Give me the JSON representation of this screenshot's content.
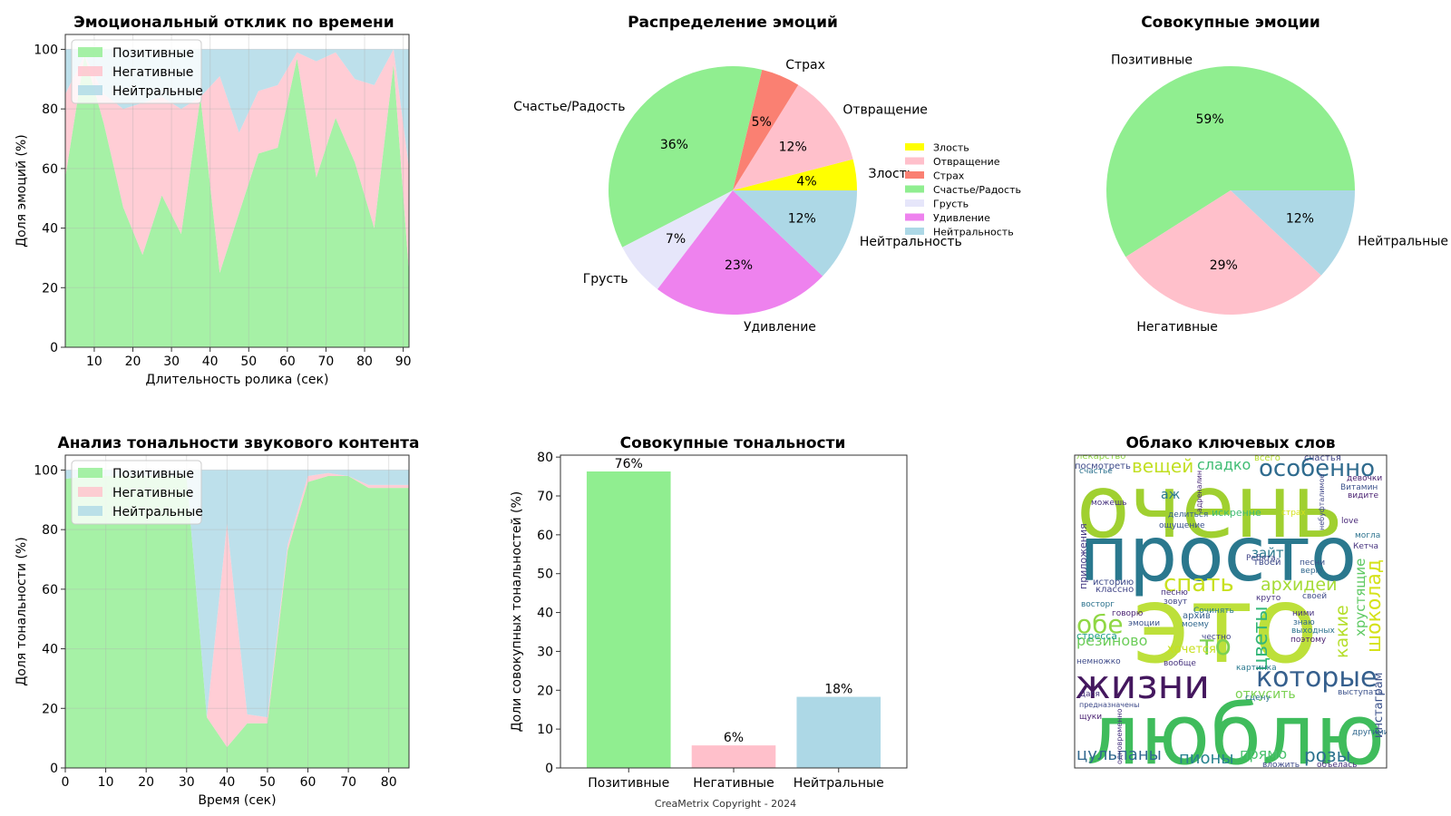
{
  "colors": {
    "positive": "#90ee90",
    "negative": "#ffc0cb",
    "neutral": "#add8e6",
    "anger": "#ffff00",
    "disgust": "#ffc0cb",
    "fear": "#fa8072",
    "happiness": "#90ee90",
    "sadness": "#e6e6fa",
    "surprise": "#ee82ee",
    "neutrality": "#add8e6"
  },
  "copyright": "CreaMetrix Copyright - 2024",
  "chart_data": [
    {
      "id": "emotion-time",
      "type": "area",
      "stacked": true,
      "title": "Эмоциональный отклик по времени",
      "xlabel": "Длительность ролика (сек)",
      "ylabel": "Доля эмоций (%)",
      "xlim": [
        2.5,
        91.5
      ],
      "ylim": [
        0,
        105
      ],
      "xticks": [
        10,
        20,
        30,
        40,
        50,
        60,
        70,
        80,
        90
      ],
      "yticks": [
        0,
        20,
        40,
        60,
        80,
        100
      ],
      "grid": true,
      "legend": "top-left",
      "x": [
        2.5,
        7.5,
        12.5,
        17.5,
        22.5,
        27.5,
        32.5,
        37.5,
        42.5,
        47.5,
        52.5,
        57.5,
        62.5,
        67.5,
        72.5,
        77.5,
        82.5,
        87.5,
        91.5
      ],
      "series": [
        {
          "name": "Позитивные",
          "color": "positive",
          "values": [
            57,
            98,
            75,
            47,
            31,
            51,
            38,
            84,
            25,
            45,
            65,
            67,
            97,
            57,
            77,
            62,
            40,
            95,
            25
          ]
        },
        {
          "name": "Негативные",
          "color": "negative",
          "values": [
            28,
            0,
            10,
            33,
            51,
            33,
            42,
            0,
            66,
            27,
            21,
            21,
            2,
            39,
            22,
            28,
            48,
            5,
            35
          ]
        },
        {
          "name": "Нейтральные",
          "color": "neutral",
          "values": [
            15,
            2,
            15,
            20,
            18,
            16,
            20,
            16,
            9,
            28,
            14,
            12,
            1,
            4,
            1,
            10,
            12,
            0,
            40
          ]
        }
      ]
    },
    {
      "id": "emotion-distribution",
      "type": "pie",
      "title": "Распределение эмоций",
      "legend": "right",
      "slices": [
        {
          "label": "Злость",
          "value": 4,
          "pct": "4%",
          "color": "anger"
        },
        {
          "label": "Отвращение",
          "value": 12,
          "pct": "12%",
          "color": "disgust"
        },
        {
          "label": "Страх",
          "value": 5,
          "pct": "5%",
          "color": "fear"
        },
        {
          "label": "Счастье/Радость",
          "value": 36,
          "pct": "36%",
          "color": "happiness"
        },
        {
          "label": "Грусть",
          "value": 7,
          "pct": "7%",
          "color": "sadness"
        },
        {
          "label": "Удивление",
          "value": 23,
          "pct": "23%",
          "color": "surprise"
        },
        {
          "label": "Нейтральность",
          "value": 12,
          "pct": "12%",
          "color": "neutrality"
        }
      ]
    },
    {
      "id": "aggregate-emotions",
      "type": "pie",
      "title": "Совокупные эмоции",
      "slices": [
        {
          "label": "Позитивные",
          "value": 59,
          "pct": "59%",
          "color": "positive"
        },
        {
          "label": "Негативные",
          "value": 29,
          "pct": "29%",
          "color": "negative"
        },
        {
          "label": "Нейтральные",
          "value": 12,
          "pct": "12%",
          "color": "neutral"
        }
      ]
    },
    {
      "id": "audio-sentiment",
      "type": "area",
      "stacked": true,
      "title": "Анализ тональности звукового контента",
      "xlabel": "Время (сек)",
      "ylabel": "Доля тональности (%)",
      "xlim": [
        0,
        85
      ],
      "ylim": [
        0,
        105
      ],
      "xticks": [
        0,
        10,
        20,
        30,
        40,
        50,
        60,
        70,
        80
      ],
      "yticks": [
        0,
        20,
        40,
        60,
        80,
        100
      ],
      "grid": true,
      "legend": "top-left",
      "x": [
        0,
        5,
        10,
        15,
        20,
        25,
        30,
        35,
        40,
        45,
        50,
        55,
        60,
        65,
        70,
        75,
        80,
        85
      ],
      "series": [
        {
          "name": "Позитивные",
          "color": "positive",
          "values": [
            97,
            98,
            98,
            98,
            98,
            98,
            98,
            17,
            7,
            15,
            15,
            73,
            96,
            98,
            98,
            94,
            94,
            94
          ]
        },
        {
          "name": "Негативные",
          "color": "negative",
          "values": [
            0,
            0,
            0,
            0,
            0,
            0,
            0,
            0,
            75,
            3,
            2,
            2,
            2,
            1,
            0,
            1,
            1,
            1
          ]
        },
        {
          "name": "Нейтральные",
          "color": "neutral",
          "values": [
            3,
            2,
            2,
            2,
            2,
            2,
            2,
            83,
            18,
            82,
            83,
            25,
            2,
            1,
            2,
            5,
            5,
            5
          ]
        }
      ]
    },
    {
      "id": "aggregate-sentiment",
      "type": "bar",
      "title": "Совокупные тональности",
      "ylabel": "Доли совокупных тональностей (%)",
      "xlabel": "",
      "ylim": [
        0,
        80.5
      ],
      "yticks": [
        0,
        10,
        20,
        30,
        40,
        50,
        60,
        70,
        80
      ],
      "categories": [
        "Позитивные",
        "Негативные",
        "Нейтральные"
      ],
      "values": [
        76.3,
        5.8,
        18.3
      ],
      "data_labels": [
        "76%",
        "6%",
        "18%"
      ],
      "colors": [
        "positive",
        "negative",
        "neutral"
      ]
    }
  ],
  "wordcloud": {
    "title": "Облако ключевых слов",
    "words": [
      {
        "text": "очень",
        "size": 96,
        "color": "#a0d030",
        "rot": 0
      },
      {
        "text": "просто",
        "size": 84,
        "color": "#2a788e",
        "rot": 0
      },
      {
        "text": "это",
        "size": 118,
        "color": "#bde03a",
        "rot": 0
      },
      {
        "text": "люблю",
        "size": 92,
        "color": "#3fbc5c",
        "rot": 0
      },
      {
        "text": "жизни",
        "size": 44,
        "color": "#44175e",
        "rot": 0
      },
      {
        "text": "которые",
        "size": 30,
        "color": "#355f8d",
        "rot": 0
      },
      {
        "text": "особенно",
        "size": 26,
        "color": "#2f6b8e",
        "rot": 0
      },
      {
        "text": "вещей",
        "size": 20,
        "color": "#c2df23",
        "rot": 0
      },
      {
        "text": "сладко",
        "size": 16,
        "color": "#3fbc73",
        "rot": 0
      },
      {
        "text": "спать",
        "size": 26,
        "color": "#c8e020",
        "rot": 0
      },
      {
        "text": "архидеи",
        "size": 19,
        "color": "#a5db36",
        "rot": 0
      },
      {
        "text": "зайти",
        "size": 15,
        "color": "#29788e",
        "rot": 0
      },
      {
        "text": "обе",
        "size": 28,
        "color": "#8fd744",
        "rot": 0
      },
      {
        "text": "резиново",
        "size": 16,
        "color": "#6ccd5a",
        "rot": 0
      },
      {
        "text": "то",
        "size": 30,
        "color": "#7ad151",
        "rot": 0
      },
      {
        "text": "цветы",
        "size": 22,
        "color": "#35b779",
        "rot": -90
      },
      {
        "text": "какие",
        "size": 19,
        "color": "#b5de2b",
        "rot": -90
      },
      {
        "text": "хрустящие",
        "size": 15,
        "color": "#5ec962",
        "rot": -90
      },
      {
        "text": "шоколад",
        "size": 22,
        "color": "#d5e21a",
        "rot": -90
      },
      {
        "text": "откусить",
        "size": 14,
        "color": "#7ad151",
        "rot": 0
      },
      {
        "text": "цульпаны",
        "size": 18,
        "color": "#31688e",
        "rot": 0
      },
      {
        "text": "пионы",
        "size": 18,
        "color": "#26828e",
        "rot": 0
      },
      {
        "text": "прямо",
        "size": 16,
        "color": "#4ac16d",
        "rot": 0
      },
      {
        "text": "розы",
        "size": 20,
        "color": "#2c728e",
        "rot": 0
      },
      {
        "text": "инстаграм",
        "size": 13,
        "color": "#3b528b",
        "rot": -90
      },
      {
        "text": "приложения",
        "size": 11,
        "color": "#443983",
        "rot": -90
      },
      {
        "text": "хочется",
        "size": 13,
        "color": "#c8e020",
        "rot": 0
      },
      {
        "text": "искренне",
        "size": 11,
        "color": "#3fbc73",
        "rot": 0
      },
      {
        "text": "лекарство",
        "size": 10,
        "color": "#90d743",
        "rot": 0
      },
      {
        "text": "посмотреть",
        "size": 10,
        "color": "#3e4a89",
        "rot": 0
      },
      {
        "text": "всего",
        "size": 10,
        "color": "#b5de2b",
        "rot": 0
      },
      {
        "text": "счастья",
        "size": 10,
        "color": "#414487",
        "rot": 0
      },
      {
        "text": "аж",
        "size": 14,
        "color": "#2a788e",
        "rot": 0
      },
      {
        "text": "можешь",
        "size": 9,
        "color": "#46327e",
        "rot": 0
      },
      {
        "text": "делиться",
        "size": 9,
        "color": "#355f8d",
        "rot": 0
      },
      {
        "text": "ощущение",
        "size": 9,
        "color": "#3b528b",
        "rot": 0
      },
      {
        "text": "адреналин",
        "size": 8,
        "color": "#482677",
        "rot": -90
      },
      {
        "text": "страх",
        "size": 9,
        "color": "#d5e21a",
        "rot": 0
      },
      {
        "text": "небуфталимое",
        "size": 8,
        "color": "#404688",
        "rot": -90
      },
      {
        "text": "девочки",
        "size": 9,
        "color": "#481f70",
        "rot": 0
      },
      {
        "text": "Витамин",
        "size": 9,
        "color": "#3b528b",
        "rot": 0
      },
      {
        "text": "видите",
        "size": 9,
        "color": "#481f70",
        "rot": 0
      },
      {
        "text": "love",
        "size": 9,
        "color": "#482878",
        "rot": 0
      },
      {
        "text": "могла",
        "size": 9,
        "color": "#2c728e",
        "rot": 0
      },
      {
        "text": "Кетча",
        "size": 9,
        "color": "#46327e",
        "rot": 0
      },
      {
        "text": "Ребята",
        "size": 9,
        "color": "#414487",
        "rot": 0
      },
      {
        "text": "твоей",
        "size": 10,
        "color": "#3e4a89",
        "rot": 0
      },
      {
        "text": "песни",
        "size": 9,
        "color": "#3b528b",
        "rot": 0
      },
      {
        "text": "верю",
        "size": 9,
        "color": "#31688e",
        "rot": 0
      },
      {
        "text": "историю",
        "size": 10,
        "color": "#3e4a89",
        "rot": 0
      },
      {
        "text": "классно",
        "size": 10,
        "color": "#414487",
        "rot": 0
      },
      {
        "text": "песню",
        "size": 9,
        "color": "#46327e",
        "rot": 0
      },
      {
        "text": "восторг",
        "size": 9,
        "color": "#2c728e",
        "rot": 0
      },
      {
        "text": "зовут",
        "size": 9,
        "color": "#404688",
        "rot": 0
      },
      {
        "text": "Сочинять",
        "size": 9,
        "color": "#2a788e",
        "rot": 0
      },
      {
        "text": "круто",
        "size": 9,
        "color": "#46327e",
        "rot": 0
      },
      {
        "text": "своей",
        "size": 9,
        "color": "#3e4a89",
        "rot": 0
      },
      {
        "text": "говорю",
        "size": 9,
        "color": "#481f70",
        "rot": 0
      },
      {
        "text": "эмоции",
        "size": 9,
        "color": "#3b528b",
        "rot": 0
      },
      {
        "text": "архив",
        "size": 10,
        "color": "#355f8d",
        "rot": 0
      },
      {
        "text": "моему",
        "size": 9,
        "color": "#31688e",
        "rot": 0
      },
      {
        "text": "ними",
        "size": 9,
        "color": "#46327e",
        "rot": 0
      },
      {
        "text": "знаю",
        "size": 9,
        "color": "#31688e",
        "rot": 0
      },
      {
        "text": "выходных",
        "size": 9,
        "color": "#2c728e",
        "rot": 0
      },
      {
        "text": "поэтому",
        "size": 9,
        "color": "#481f70",
        "rot": 0
      },
      {
        "text": "честно",
        "size": 9,
        "color": "#404688",
        "rot": 0
      },
      {
        "text": "стресса",
        "size": 11,
        "color": "#1f9e89",
        "rot": 0
      },
      {
        "text": "немножко",
        "size": 9,
        "color": "#3e4a89",
        "rot": 0
      },
      {
        "text": "вообще",
        "size": 9,
        "color": "#46327e",
        "rot": 0
      },
      {
        "text": "картинка",
        "size": 9,
        "color": "#2a788e",
        "rot": 0
      },
      {
        "text": "Дася",
        "size": 9,
        "color": "#46327e",
        "rot": 0
      },
      {
        "text": "предназначены",
        "size": 8,
        "color": "#3e4a89",
        "rot": 0
      },
      {
        "text": "щуки",
        "size": 9,
        "color": "#481f70",
        "rot": 0
      },
      {
        "text": "сцену",
        "size": 9,
        "color": "#2c728e",
        "rot": 0
      },
      {
        "text": "выступать",
        "size": 9,
        "color": "#3b528b",
        "rot": 0
      },
      {
        "text": "другими",
        "size": 9,
        "color": "#31688e",
        "rot": 0
      },
      {
        "text": "одновременно",
        "size": 8,
        "color": "#46327e",
        "rot": -90
      },
      {
        "text": "вложить",
        "size": 9,
        "color": "#3e4a89",
        "rot": 0
      },
      {
        "text": "объелась",
        "size": 9,
        "color": "#46327e",
        "rot": 0
      },
      {
        "text": "счастье",
        "size": 9,
        "color": "#2c728e",
        "rot": 0
      }
    ]
  }
}
